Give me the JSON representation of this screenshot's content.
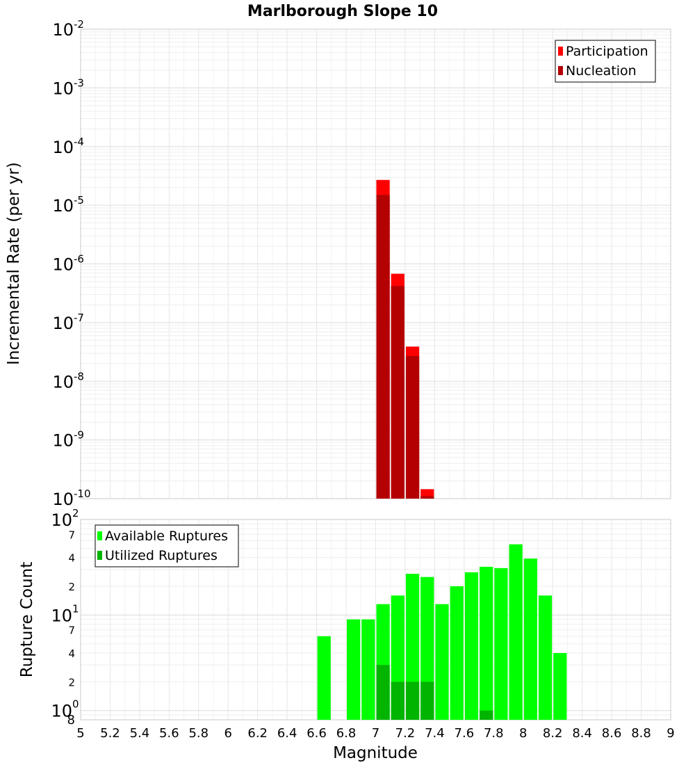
{
  "chart_data": [
    {
      "type": "bar",
      "title": "Marlborough Slope 10",
      "xlabel": "",
      "ylabel": "Incremental Rate (per yr)",
      "yscale": "log",
      "ylim": [
        1e-10,
        0.01
      ],
      "xlim": [
        5,
        9
      ],
      "bin_width": 0.1,
      "y_ticks": [
        {
          "mant": "10",
          "exp": "-2"
        },
        {
          "mant": "10",
          "exp": "-3"
        },
        {
          "mant": "10",
          "exp": "-4"
        },
        {
          "mant": "10",
          "exp": "-5"
        },
        {
          "mant": "10",
          "exp": "-6"
        },
        {
          "mant": "10",
          "exp": "-7"
        },
        {
          "mant": "10",
          "exp": "-8"
        },
        {
          "mant": "10",
          "exp": "-9"
        },
        {
          "mant": "10",
          "exp": "-10"
        }
      ],
      "legend": {
        "position": "top-right",
        "entries": [
          "Participation",
          "Nucleation"
        ]
      },
      "series": [
        {
          "name": "Participation",
          "color": "#ff0000",
          "x": [
            7.05,
            7.15,
            7.25,
            7.35
          ],
          "values": [
            2.7e-05,
            6.8e-07,
            3.9e-08,
            1.45e-10
          ]
        },
        {
          "name": "Nucleation",
          "color": "#b40000",
          "x": [
            7.05,
            7.15,
            7.25,
            7.35
          ],
          "values": [
            1.5e-05,
            4.2e-07,
            2.7e-08,
            1.1e-10
          ]
        }
      ]
    },
    {
      "type": "bar",
      "title": "",
      "xlabel": "Magnitude",
      "ylabel": "Rupture Count",
      "yscale": "log",
      "ylim": [
        0.8,
        100
      ],
      "xlim": [
        5,
        9
      ],
      "bin_width": 0.1,
      "x_ticks": [
        "5",
        "5.2",
        "5.4",
        "5.6",
        "5.8",
        "6",
        "6.2",
        "6.4",
        "6.6",
        "6.8",
        "7",
        "7.2",
        "7.4",
        "7.6",
        "7.8",
        "8",
        "8.2",
        "8.4",
        "8.6",
        "8.8",
        "9"
      ],
      "y_major_ticks": [
        {
          "mant": "10",
          "exp": "2"
        },
        {
          "mant": "10",
          "exp": "1"
        },
        {
          "mant": "10",
          "exp": "0"
        }
      ],
      "y_minor_ticks": [
        "7",
        "4",
        "2",
        "7",
        "4",
        "2",
        "8"
      ],
      "legend": {
        "position": "top-left",
        "entries": [
          "Available Ruptures",
          "Utilized Ruptures"
        ]
      },
      "series": [
        {
          "name": "Available Ruptures",
          "color": "#00ff00",
          "x": [
            6.65,
            6.85,
            6.95,
            7.05,
            7.15,
            7.25,
            7.35,
            7.45,
            7.55,
            7.65,
            7.75,
            7.85,
            7.95,
            8.05,
            8.15,
            8.25
          ],
          "values": [
            6,
            9,
            9,
            13,
            16,
            27,
            25,
            13,
            20,
            28,
            32,
            31,
            55,
            39,
            16,
            4
          ]
        },
        {
          "name": "Utilized Ruptures",
          "color": "#00b400",
          "x": [
            7.05,
            7.15,
            7.25,
            7.35,
            7.75
          ],
          "values": [
            3,
            2,
            2,
            2,
            1
          ]
        }
      ]
    }
  ]
}
